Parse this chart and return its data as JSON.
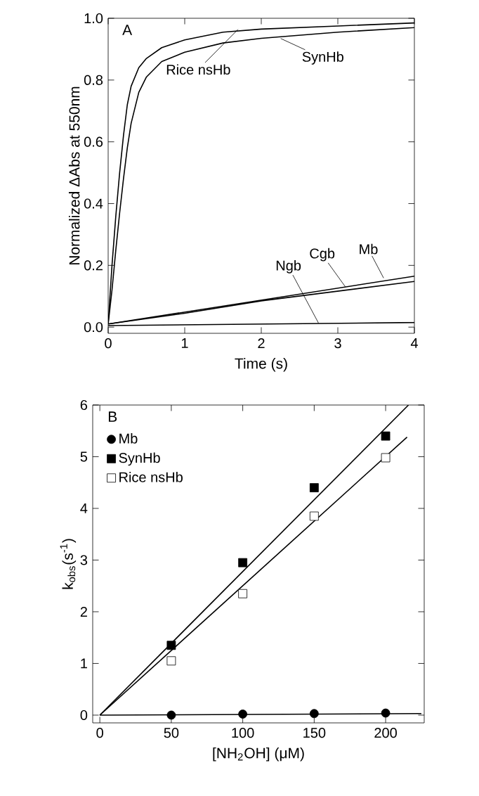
{
  "chart_data": [
    {
      "type": "line",
      "xlabel": "Time (s)",
      "ylabel": "Normalized ΔAbs at 550nm",
      "xlim": [
        0,
        4
      ],
      "ylim": [
        -0.02,
        1.0
      ],
      "xticks": [
        0,
        1,
        2,
        3,
        4
      ],
      "yticks": [
        {
          "value": 0,
          "label": "0.0"
        },
        {
          "value": 0.2,
          "label": "0.2"
        },
        {
          "value": 0.4,
          "label": "0.4"
        },
        {
          "value": 0.6,
          "label": "0.6"
        },
        {
          "value": 0.8,
          "label": "0.8"
        },
        {
          "value": 1.0,
          "label": "1.0"
        }
      ],
      "grid": false,
      "legend": false,
      "marker": "none",
      "line_style": "solid",
      "series": [
        {
          "color": "#000000",
          "x": [
            0,
            0.05,
            0.1,
            0.15,
            0.2,
            0.25,
            0.3,
            0.4,
            0.5,
            0.7,
            1,
            1.5,
            2,
            3,
            4
          ],
          "values": [
            0.01,
            0.2,
            0.36,
            0.5,
            0.62,
            0.72,
            0.78,
            0.84,
            0.87,
            0.905,
            0.93,
            0.955,
            0.965,
            0.975,
            0.985
          ]
        },
        {
          "color": "#000000",
          "x": [
            0,
            0.05,
            0.1,
            0.15,
            0.2,
            0.25,
            0.3,
            0.4,
            0.5,
            0.7,
            1,
            1.5,
            2,
            3,
            4
          ],
          "values": [
            0.01,
            0.12,
            0.25,
            0.37,
            0.48,
            0.58,
            0.66,
            0.76,
            0.81,
            0.86,
            0.89,
            0.92,
            0.935,
            0.955,
            0.97
          ]
        },
        {
          "color": "#000000",
          "x": [
            0,
            4
          ],
          "values": [
            0.01,
            0.165
          ]
        },
        {
          "color": "#000000",
          "x": [
            0,
            1,
            2,
            4
          ],
          "values": [
            0.01,
            0.045,
            0.085,
            0.148
          ]
        },
        {
          "color": "#000000",
          "x": [
            0,
            4
          ],
          "values": [
            0.005,
            0.015
          ]
        }
      ],
      "annotations": [
        "A",
        {
          "text": "Rice nsHb",
          "x": 1.7,
          "y": 0.965
        },
        {
          "text": "SynHb",
          "x": 2.25,
          "y": 0.935
        },
        {
          "text": "Ngb",
          "x": 2.75,
          "y": 0.012
        },
        {
          "text": "Cgb",
          "x": 3.1,
          "y": 0.13
        },
        {
          "text": "Mb",
          "x": 3.6,
          "y": 0.158
        }
      ]
    },
    {
      "type": "scatter",
      "xlabel": "[NH$_{2}$OH] (μM)",
      "ylabel": "k$_{obs}$(s$^{-1}$)",
      "xlim": [
        -5,
        227
      ],
      "ylim": [
        -0.15,
        6
      ],
      "xticks": [
        0,
        50,
        100,
        150,
        200
      ],
      "yticks": [
        0,
        1,
        2,
        3,
        4,
        5,
        6
      ],
      "grid": false,
      "legend": "top left",
      "series": [
        {
          "name": "Mb",
          "color": "#000000",
          "marker": "circle",
          "x": [
            50,
            100,
            150,
            200
          ],
          "values": [
            0.0,
            0.02,
            0.03,
            0.04
          ]
        },
        {
          "name": "SynHb",
          "color": "#000000",
          "marker": "square",
          "x": [
            50,
            100,
            150,
            200
          ],
          "values": [
            1.35,
            2.95,
            4.4,
            5.4
          ]
        },
        {
          "name": "Rice nsHb",
          "color": "#ffffff",
          "marker": "square",
          "x": [
            50,
            100,
            150,
            200
          ],
          "values": [
            1.05,
            2.35,
            3.85,
            4.98
          ]
        },
        {
          "type": "line",
          "color": "#000000",
          "x": [
            0,
            225
          ],
          "values": [
            0,
            0.03
          ]
        },
        {
          "type": "line",
          "color": "#000000",
          "x": [
            0,
            216
          ],
          "values": [
            0,
            6
          ]
        },
        {
          "type": "line",
          "color": "#000000",
          "x": [
            0,
            215
          ],
          "values": [
            0,
            5.38
          ]
        }
      ],
      "annotations": [
        "B"
      ]
    }
  ]
}
